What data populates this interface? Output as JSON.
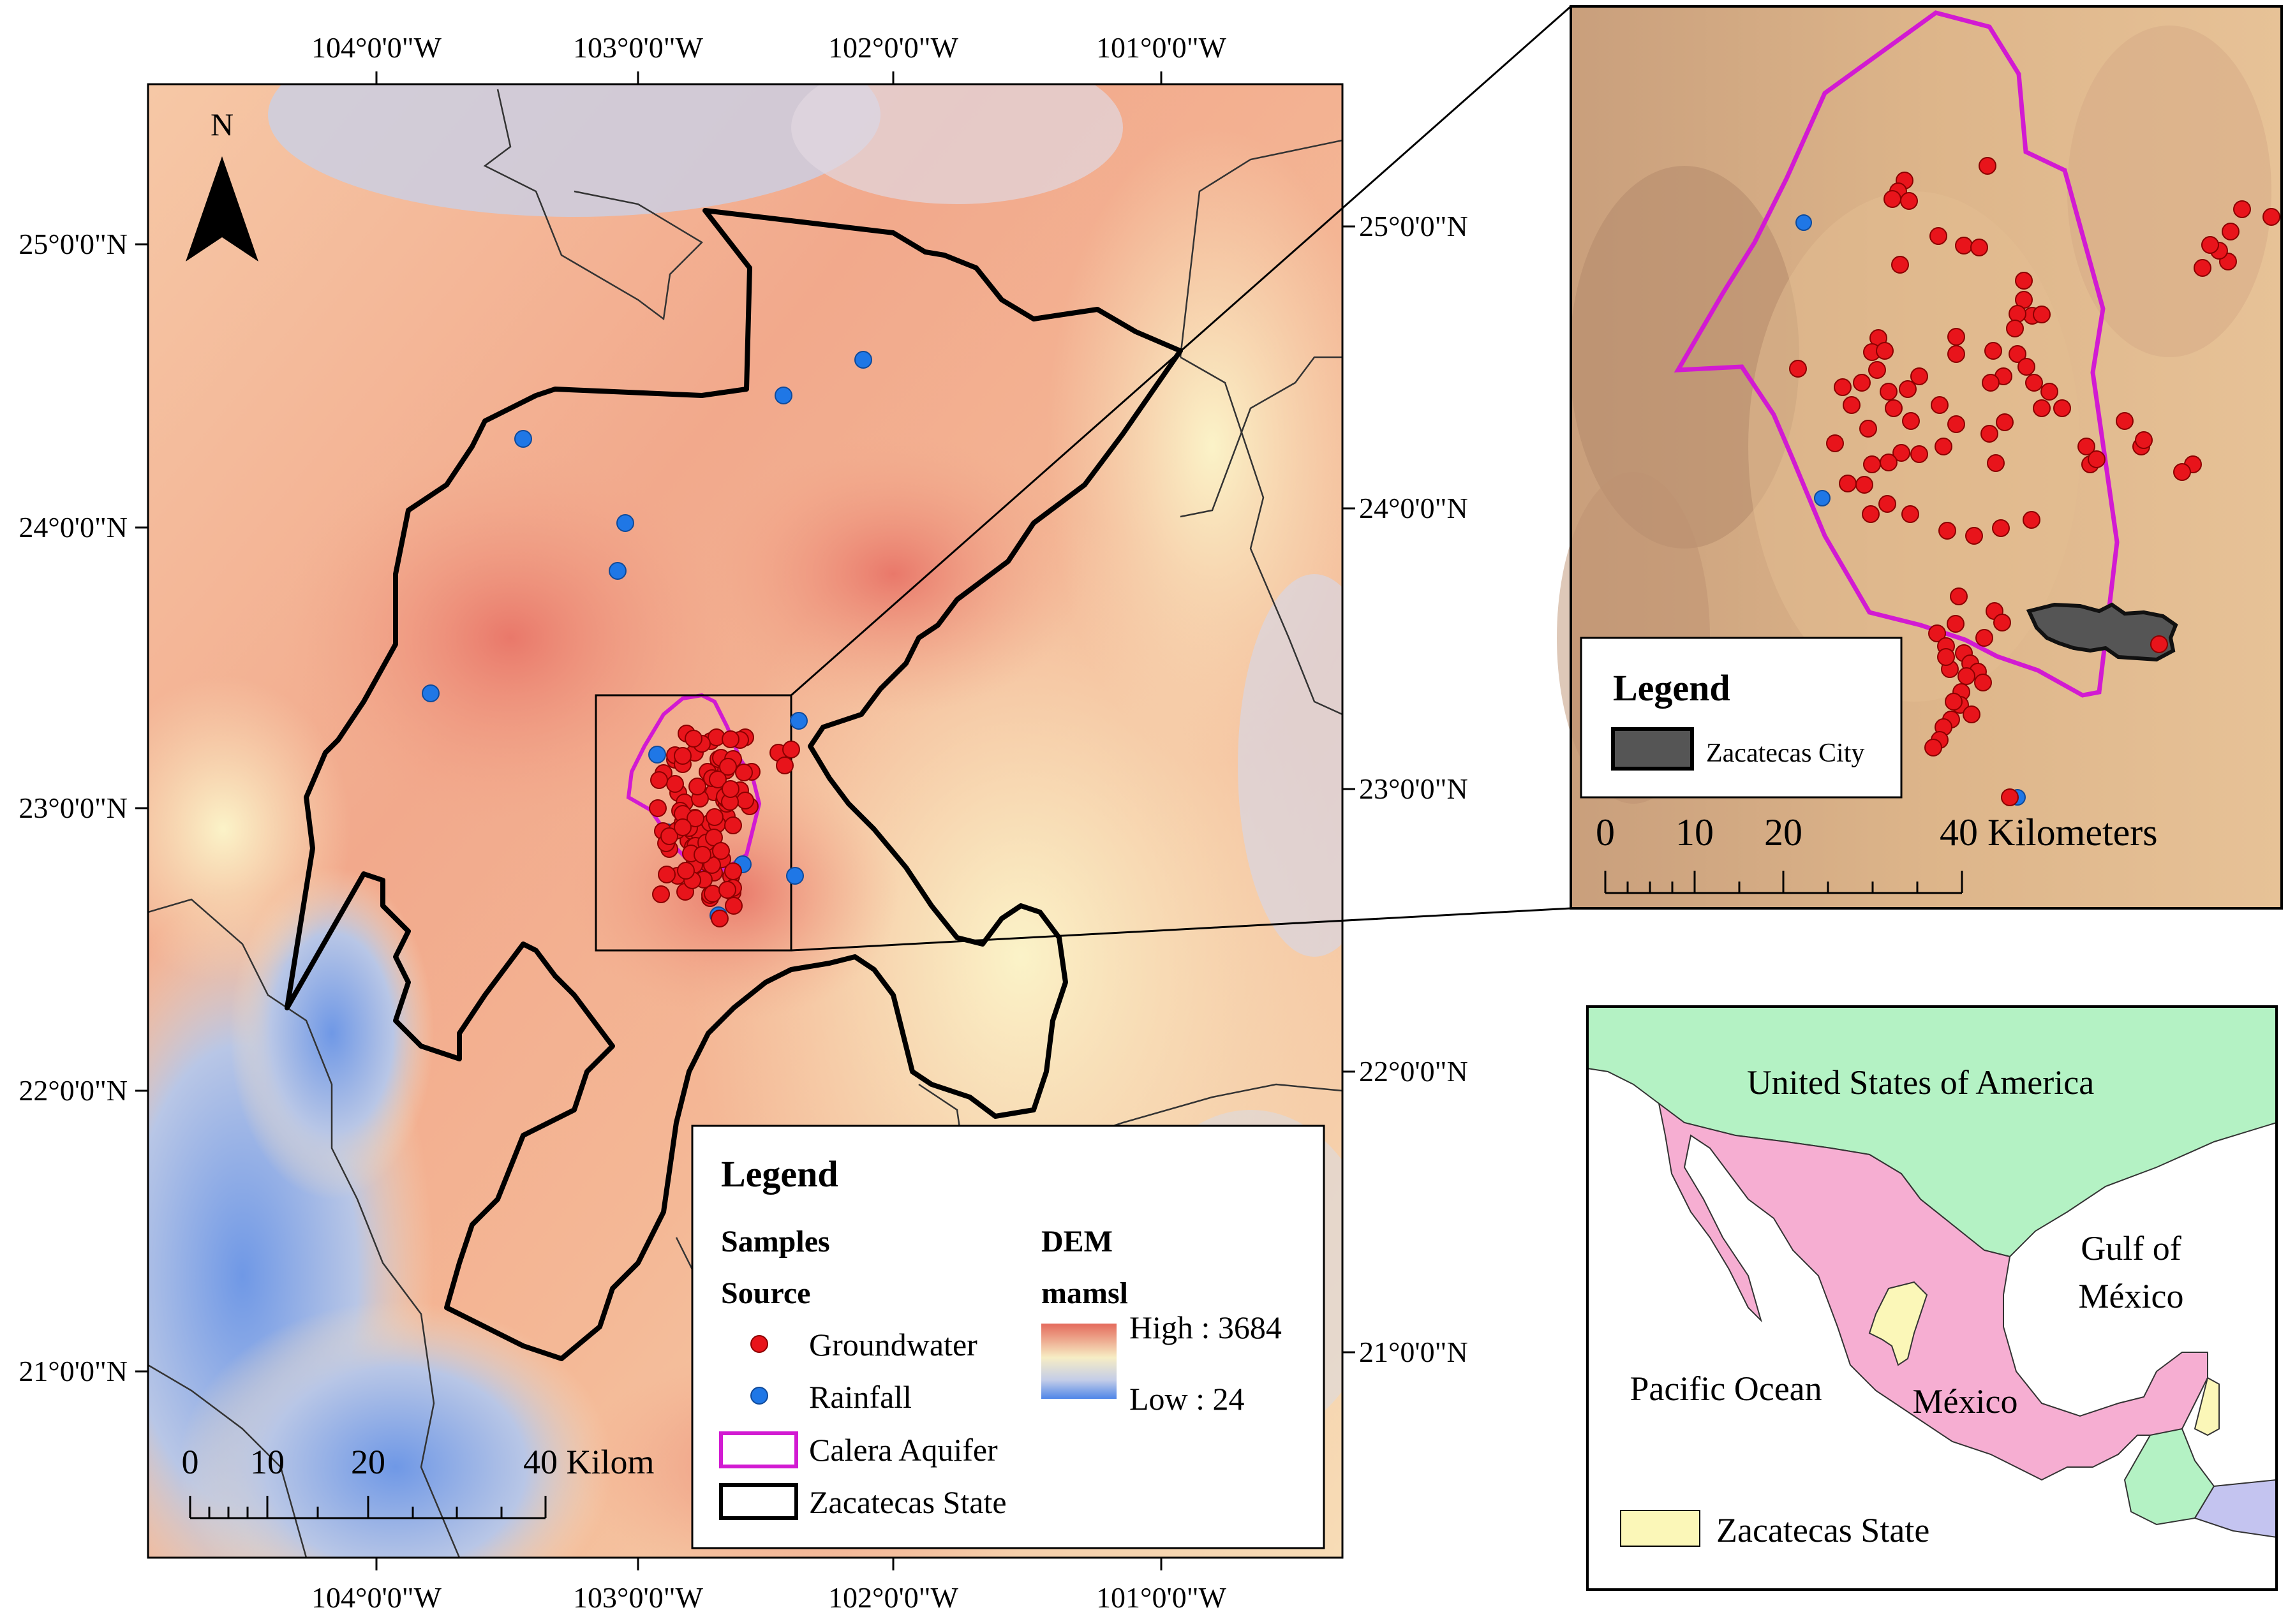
{
  "main_map": {
    "longitudes": [
      "104°0'0\"W",
      "103°0'0\"W",
      "102°0'0\"W",
      "101°0'0\"W"
    ],
    "latitudes": [
      "25°0'0\"N",
      "24°0'0\"N",
      "23°0'0\"N",
      "22°0'0\"N",
      "21°0'0\"N"
    ],
    "north_label": "N",
    "scale_ticks": [
      "0",
      "10",
      "20"
    ],
    "scale_end": "40 Kilom",
    "legend": {
      "title": "Legend",
      "samples_header": "Samples",
      "source_header": "Source",
      "groundwater": "Groundwater",
      "rainfall": "Rainfall",
      "aquifer": "Calera Aquifer",
      "state": "Zacatecas State",
      "dem_header": "DEM",
      "dem_unit": "mamsl",
      "dem_high": "High : 3684",
      "dem_low": "Low : 24"
    }
  },
  "zoom_map": {
    "legend_title": "Legend",
    "city_label": "Zacatecas City",
    "scale_ticks": [
      "0",
      "10",
      "20"
    ],
    "scale_end": "40 Kilometers"
  },
  "locator_map": {
    "usa": "United States of America",
    "gulf": "Gulf of\nMéxico",
    "gulf_line1": "Gulf of",
    "gulf_line2": "México",
    "pacific": "Pacific Ocean",
    "mexico": "México",
    "legend_label": "Zacatecas State"
  },
  "colors": {
    "groundwater": "#e8141b",
    "rainfall": "#1f77e6",
    "aquifer": "#d21ad2",
    "state_boundary": "#000000",
    "dem_high": "#e46a5c",
    "dem_mid": "#f7edc4",
    "dem_low": "#4f86e8",
    "usa_fill": "#b4f2c4",
    "mexico_fill": "#f6aed2",
    "zacatecas_fill": "#fbf7b8",
    "city_fill": "#555555"
  }
}
